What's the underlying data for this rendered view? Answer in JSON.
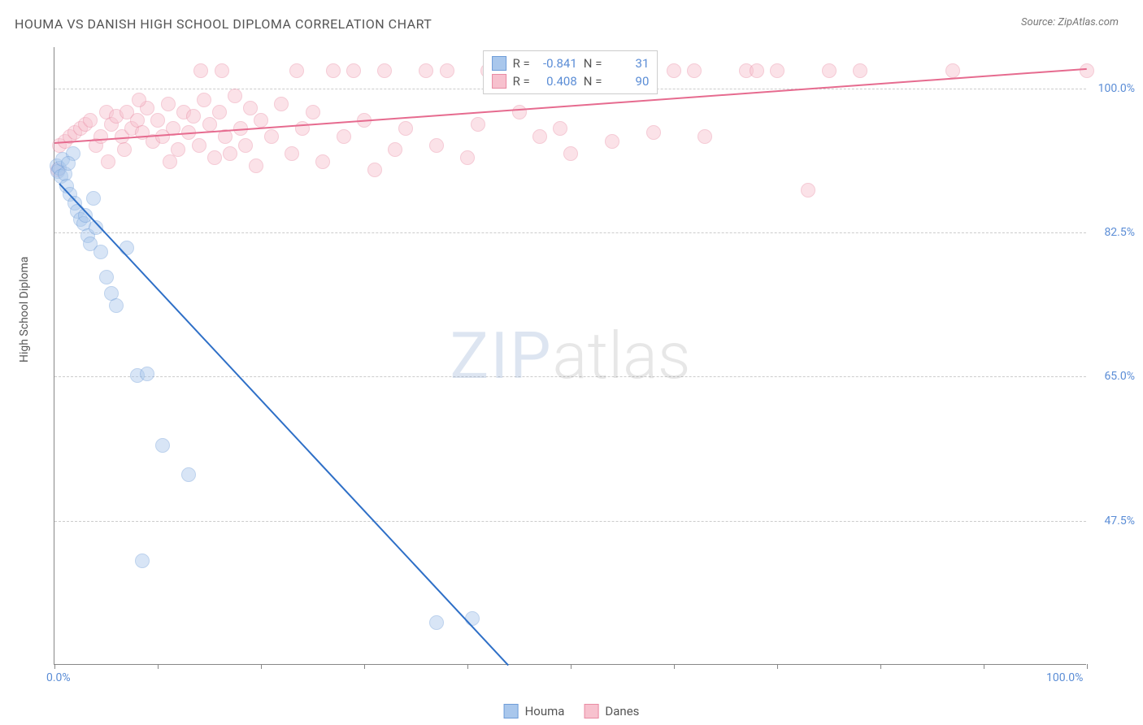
{
  "title": "HOUMA VS DANISH HIGH SCHOOL DIPLOMA CORRELATION CHART",
  "source": "Source: ZipAtlas.com",
  "ylabel": "High School Diploma",
  "watermark_zip": "ZIP",
  "watermark_atlas": "atlas",
  "chart": {
    "type": "scatter",
    "xlim": [
      0,
      100
    ],
    "ylim": [
      30,
      105
    ],
    "background_color": "#ffffff",
    "grid_color": "#cccccc",
    "axis_color": "#888888",
    "tick_label_color": "#5b8dd6",
    "y_ticks": [
      47.5,
      65.0,
      82.5,
      100.0
    ],
    "y_tick_labels": [
      "47.5%",
      "65.0%",
      "82.5%",
      "100.0%"
    ],
    "x_tick_positions": [
      0,
      10,
      20,
      30,
      40,
      50,
      60,
      70,
      80,
      90,
      100
    ],
    "x_tick_labels": {
      "0": "0.0%",
      "100": "100.0%"
    },
    "marker_radius": 9,
    "marker_opacity": 0.45,
    "line_width": 2
  },
  "series": {
    "houma": {
      "label": "Houma",
      "color_fill": "#a9c7ec",
      "color_stroke": "#6f9dd8",
      "line_color": "#2e6fc7",
      "R": "-0.841",
      "N": "31",
      "trend": {
        "x1": 0.5,
        "y1": 88.5,
        "x2": 44,
        "y2": 30
      },
      "points": [
        [
          0.2,
          90.5
        ],
        [
          0.3,
          89.8
        ],
        [
          0.5,
          90.2
        ],
        [
          0.6,
          89.2
        ],
        [
          0.8,
          91.3
        ],
        [
          1.0,
          89.5
        ],
        [
          1.2,
          88.0
        ],
        [
          1.5,
          87.0
        ],
        [
          1.8,
          92.0
        ],
        [
          2.0,
          86.0
        ],
        [
          2.2,
          85.0
        ],
        [
          2.5,
          84.0
        ],
        [
          2.8,
          83.5
        ],
        [
          3.0,
          84.5
        ],
        [
          3.2,
          82.0
        ],
        [
          3.5,
          81.0
        ],
        [
          4.0,
          83.0
        ],
        [
          4.5,
          80.0
        ],
        [
          5.0,
          77.0
        ],
        [
          5.5,
          75.0
        ],
        [
          6.0,
          73.5
        ],
        [
          7.0,
          80.5
        ],
        [
          8.0,
          65.0
        ],
        [
          9.0,
          65.2
        ],
        [
          10.5,
          56.5
        ],
        [
          13.0,
          53.0
        ],
        [
          8.5,
          42.5
        ],
        [
          37.0,
          35.0
        ],
        [
          40.5,
          35.5
        ],
        [
          3.8,
          86.5
        ],
        [
          1.3,
          90.8
        ]
      ]
    },
    "danes": {
      "label": "Danes",
      "color_fill": "#f7c1ce",
      "color_stroke": "#e98ba3",
      "line_color": "#e66b8f",
      "R": "0.408",
      "N": "90",
      "trend": {
        "x1": 0,
        "y1": 93.5,
        "x2": 100,
        "y2": 102.5
      },
      "points": [
        [
          0.3,
          90.0
        ],
        [
          0.5,
          93.0
        ],
        [
          1.0,
          93.5
        ],
        [
          1.5,
          94.0
        ],
        [
          2.0,
          94.5
        ],
        [
          2.5,
          95.0
        ],
        [
          3.0,
          95.5
        ],
        [
          3.5,
          96.0
        ],
        [
          4.0,
          93.0
        ],
        [
          4.5,
          94.0
        ],
        [
          5.0,
          97.0
        ],
        [
          5.5,
          95.5
        ],
        [
          6.0,
          96.5
        ],
        [
          6.5,
          94.0
        ],
        [
          7.0,
          97.0
        ],
        [
          7.5,
          95.0
        ],
        [
          8.0,
          96.0
        ],
        [
          8.5,
          94.5
        ],
        [
          9.0,
          97.5
        ],
        [
          9.5,
          93.5
        ],
        [
          10.0,
          96.0
        ],
        [
          10.5,
          94.0
        ],
        [
          11.0,
          98.0
        ],
        [
          11.5,
          95.0
        ],
        [
          12.0,
          92.5
        ],
        [
          12.5,
          97.0
        ],
        [
          13.0,
          94.5
        ],
        [
          13.5,
          96.5
        ],
        [
          14.0,
          93.0
        ],
        [
          14.5,
          98.5
        ],
        [
          15.0,
          95.5
        ],
        [
          15.5,
          91.5
        ],
        [
          16.0,
          97.0
        ],
        [
          16.5,
          94.0
        ],
        [
          17.0,
          92.0
        ],
        [
          17.5,
          99.0
        ],
        [
          18.0,
          95.0
        ],
        [
          18.5,
          93.0
        ],
        [
          19.0,
          97.5
        ],
        [
          19.5,
          90.5
        ],
        [
          20.0,
          96.0
        ],
        [
          21.0,
          94.0
        ],
        [
          22.0,
          98.0
        ],
        [
          23.0,
          92.0
        ],
        [
          23.5,
          102.0
        ],
        [
          24.0,
          95.0
        ],
        [
          25.0,
          97.0
        ],
        [
          26.0,
          91.0
        ],
        [
          27.0,
          102.0
        ],
        [
          28.0,
          94.0
        ],
        [
          29.0,
          102.0
        ],
        [
          30.0,
          96.0
        ],
        [
          31.0,
          90.0
        ],
        [
          32.0,
          102.0
        ],
        [
          33.0,
          92.5
        ],
        [
          34.0,
          95.0
        ],
        [
          36.0,
          102.0
        ],
        [
          37.0,
          93.0
        ],
        [
          38.0,
          102.0
        ],
        [
          40.0,
          91.5
        ],
        [
          41.0,
          95.5
        ],
        [
          42.0,
          102.0
        ],
        [
          43.0,
          102.0
        ],
        [
          45.0,
          97.0
        ],
        [
          47.0,
          94.0
        ],
        [
          48.0,
          102.0
        ],
        [
          49.0,
          95.0
        ],
        [
          50.0,
          92.0
        ],
        [
          52.0,
          102.0
        ],
        [
          54.0,
          93.5
        ],
        [
          55.0,
          102.0
        ],
        [
          57.0,
          102.0
        ],
        [
          58.0,
          94.5
        ],
        [
          60.0,
          102.0
        ],
        [
          62.0,
          102.0
        ],
        [
          63.0,
          94.0
        ],
        [
          67.0,
          102.0
        ],
        [
          68.0,
          102.0
        ],
        [
          70.0,
          102.0
        ],
        [
          73.0,
          87.5
        ],
        [
          75.0,
          102.0
        ],
        [
          78.0,
          102.0
        ],
        [
          87.0,
          102.0
        ],
        [
          100.0,
          102.0
        ],
        [
          5.2,
          91.0
        ],
        [
          6.8,
          92.5
        ],
        [
          8.2,
          98.5
        ],
        [
          11.2,
          91.0
        ],
        [
          14.2,
          102.0
        ],
        [
          16.2,
          102.0
        ]
      ]
    }
  },
  "legend_top": {
    "r_label": "R =",
    "n_label": "N ="
  }
}
